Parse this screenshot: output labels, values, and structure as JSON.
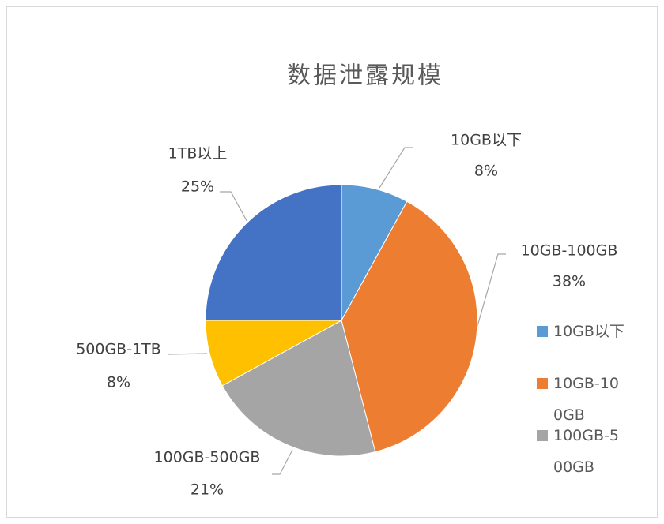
{
  "chart_data": {
    "type": "pie",
    "title": "数据泄露规模",
    "categories": [
      "10GB以下",
      "10GB-100GB",
      "100GB-500GB",
      "500GB-1TB",
      "1TB以上"
    ],
    "values": [
      8,
      38,
      21,
      8,
      25
    ],
    "value_labels": [
      "8%",
      "38%",
      "21%",
      "8%",
      "25%"
    ],
    "colors": [
      "#5b9bd5",
      "#ed7d31",
      "#a5a5a5",
      "#ffc000",
      "#4472c4"
    ]
  }
}
